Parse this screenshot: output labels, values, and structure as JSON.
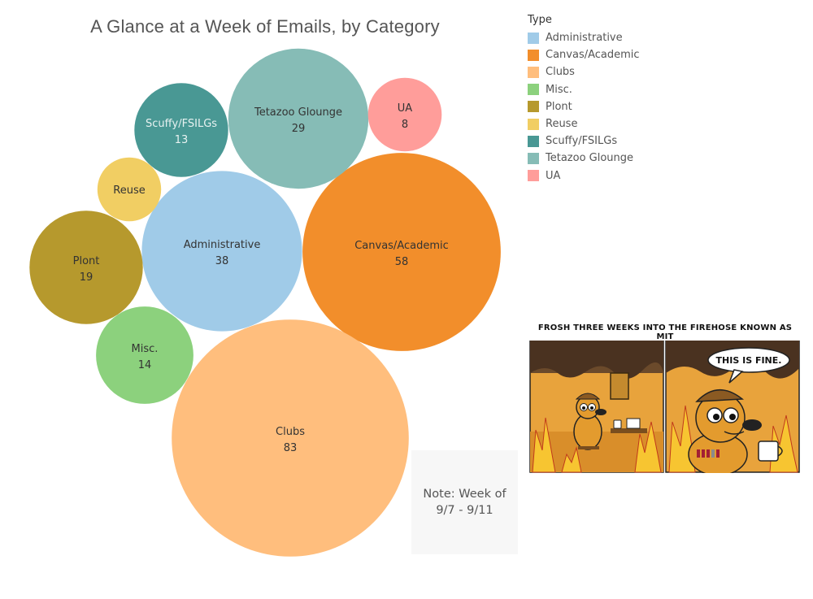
{
  "chart_data": {
    "type": "bubble",
    "title": "A Glance at a Week of Emails, by Category",
    "legend_title": "Type",
    "legend_placement": "top-right",
    "series": [
      {
        "name": "Administrative",
        "value": 38,
        "color": "#A0CBE8"
      },
      {
        "name": "Canvas/Academic",
        "value": 58,
        "color": "#F28E2B"
      },
      {
        "name": "Clubs",
        "value": 83,
        "color": "#FFBE7D"
      },
      {
        "name": "Misc.",
        "value": 14,
        "color": "#8CD17D"
      },
      {
        "name": "Plont",
        "value": 19,
        "color": "#B6992D"
      },
      {
        "name": "Reuse",
        "value": 6,
        "color": "#F1CE63"
      },
      {
        "name": "Scuffy/FSILGs",
        "value": 13,
        "color": "#499894"
      },
      {
        "name": "Tetazoo Glounge",
        "value": 29,
        "color": "#86BCB6"
      },
      {
        "name": "UA",
        "value": 8,
        "color": "#FF9D9A"
      }
    ]
  },
  "note": {
    "line1": "Note: Week of",
    "line2": "9/7 - 9/11"
  },
  "meme": {
    "caption": "FROSH THREE WEEKS INTO THE FIREHOSE KNOWN AS MIT",
    "speech": "THIS IS FINE."
  }
}
